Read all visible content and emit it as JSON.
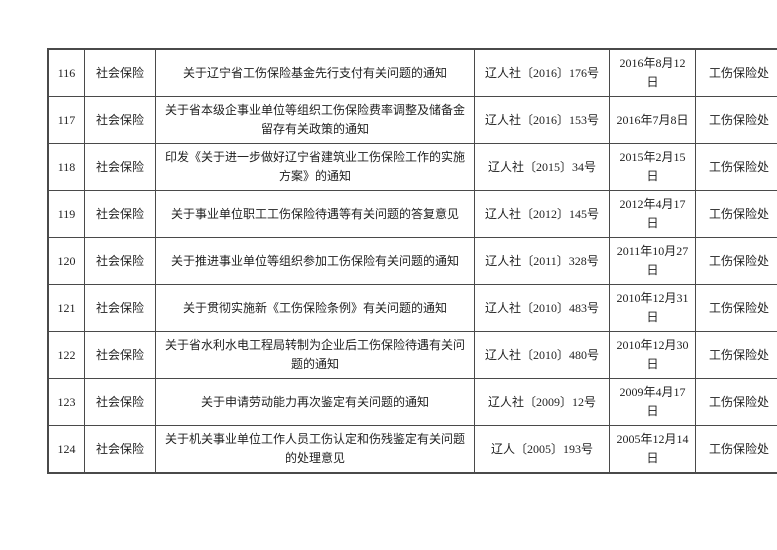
{
  "colors": {
    "border": "#4a4a4a",
    "text": "#1f1f1f",
    "background": "#ffffff"
  },
  "table": {
    "rows": [
      {
        "num": "116",
        "category": "社会保险",
        "title": "关于辽宁省工伤保险基金先行支付有关问题的通知",
        "doc_no": "辽人社〔2016〕176号",
        "date": "2016年8月12日",
        "dept": "工伤保险处"
      },
      {
        "num": "117",
        "category": "社会保险",
        "title": "关于省本级企事业单位等组织工伤保险费率调整及储备金留存有关政策的通知",
        "doc_no": "辽人社〔2016〕153号",
        "date": "2016年7月8日",
        "dept": "工伤保险处"
      },
      {
        "num": "118",
        "category": "社会保险",
        "title": "印发《关于进一步做好辽宁省建筑业工伤保险工作的实施方案》的通知",
        "doc_no": "辽人社〔2015〕34号",
        "date": "2015年2月15日",
        "dept": "工伤保险处"
      },
      {
        "num": "119",
        "category": "社会保险",
        "title": "关于事业单位职工工伤保险待遇等有关问题的答复意见",
        "doc_no": "辽人社〔2012〕145号",
        "date": "2012年4月17日",
        "dept": "工伤保险处"
      },
      {
        "num": "120",
        "category": "社会保险",
        "title": "关于推进事业单位等组织参加工伤保险有关问题的通知",
        "doc_no": "辽人社〔2011〕328号",
        "date": "2011年10月27日",
        "dept": "工伤保险处"
      },
      {
        "num": "121",
        "category": "社会保险",
        "title": "关于贯彻实施新《工伤保险条例》有关问题的通知",
        "doc_no": "辽人社〔2010〕483号",
        "date": "2010年12月31日",
        "dept": "工伤保险处"
      },
      {
        "num": "122",
        "category": "社会保险",
        "title": "关于省水利水电工程局转制为企业后工伤保险待遇有关问题的通知",
        "doc_no": "辽人社〔2010〕480号",
        "date": "2010年12月30日",
        "dept": "工伤保险处"
      },
      {
        "num": "123",
        "category": "社会保险",
        "title": "关于申请劳动能力再次鉴定有关问题的通知",
        "doc_no": "辽人社〔2009〕12号",
        "date": "2009年4月17日",
        "dept": "工伤保险处"
      },
      {
        "num": "124",
        "category": "社会保险",
        "title": "关于机关事业单位工作人员工伤认定和伤残鉴定有关问题的处理意见",
        "doc_no": "辽人〔2005〕193号",
        "date": "2005年12月14日",
        "dept": "工伤保险处"
      }
    ]
  }
}
